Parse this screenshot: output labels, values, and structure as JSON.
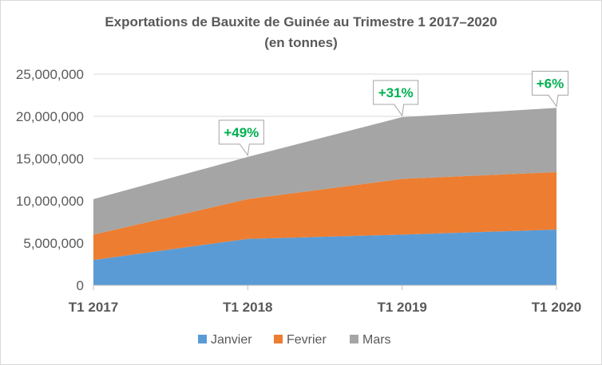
{
  "chart_data": {
    "type": "area",
    "stacked": true,
    "title": "Exportations de Bauxite de Guinée au Trimestre 1 2017–2020",
    "subtitle": "(en tonnes)",
    "categories": [
      "T1 2017",
      "T1 2018",
      "T1 2019",
      "T1 2020"
    ],
    "ylim": [
      0,
      25000000
    ],
    "yticks": [
      0,
      5000000,
      10000000,
      15000000,
      20000000,
      25000000
    ],
    "ytick_labels": [
      "0",
      "5,000,000",
      "10,000,000",
      "15,000,000",
      "20,000,000",
      "25,000,000"
    ],
    "grid": true,
    "legend_position": "bottom",
    "series": [
      {
        "name": "Janvier",
        "color": "#5b9bd5",
        "values": [
          3000000,
          5500000,
          6000000,
          6600000
        ]
      },
      {
        "name": "Fevrier",
        "color": "#ed7d31",
        "values": [
          3000000,
          4700000,
          6600000,
          6800000
        ]
      },
      {
        "name": "Mars",
        "color": "#a5a5a5",
        "values": [
          4200000,
          5000000,
          7300000,
          7600000
        ]
      }
    ],
    "annotations": [
      {
        "label": "+49%",
        "category_index": 1,
        "color": "#00b050"
      },
      {
        "label": "+31%",
        "category_index": 2,
        "color": "#00b050"
      },
      {
        "label": "+6%",
        "category_index": 3,
        "color": "#00b050"
      }
    ]
  }
}
